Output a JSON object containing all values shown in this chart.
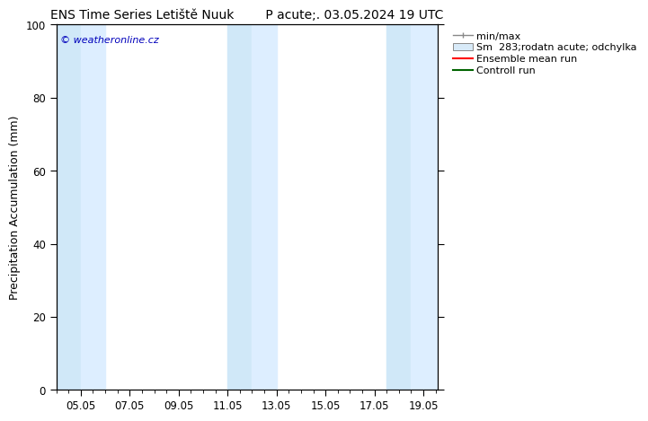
{
  "title": "ENS Time Series Letiště Nuuk        P acute;. 03.05.2024 19 UTC",
  "ylabel": "Precipitation Accumulation (mm)",
  "watermark": "© weatheronline.cz",
  "watermark_color": "#0000bb",
  "ylim": [
    0,
    100
  ],
  "xlim_start": 4.0,
  "xlim_end": 19.6,
  "xtick_labels": [
    "05.05",
    "07.05",
    "09.05",
    "11.05",
    "13.05",
    "15.05",
    "17.05",
    "19.05"
  ],
  "xtick_positions": [
    5,
    7,
    9,
    11,
    13,
    15,
    17,
    19
  ],
  "ytick_positions": [
    0,
    20,
    40,
    60,
    80,
    100
  ],
  "shaded_bands": [
    {
      "x_start": 4.0,
      "x_end": 5.0,
      "color": "#d0e8f8"
    },
    {
      "x_start": 5.0,
      "x_end": 6.0,
      "color": "#ddeeff"
    },
    {
      "x_start": 11.0,
      "x_end": 12.0,
      "color": "#d0e8f8"
    },
    {
      "x_start": 12.0,
      "x_end": 13.0,
      "color": "#ddeeff"
    },
    {
      "x_start": 17.5,
      "x_end": 18.5,
      "color": "#d0e8f8"
    },
    {
      "x_start": 18.5,
      "x_end": 19.6,
      "color": "#ddeeff"
    }
  ],
  "legend_labels": [
    "min/max",
    "Sm  283;rodatn acute; odchylka",
    "Ensemble mean run",
    "Controll run"
  ],
  "legend_line_red": "#ff0000",
  "legend_line_green": "#006400",
  "legend_gray_dark": "#888888",
  "legend_gray_light": "#cccccc",
  "bg_color": "#ffffff",
  "plot_bg_color": "#ffffff",
  "title_fontsize": 10,
  "axis_label_fontsize": 9,
  "tick_fontsize": 8.5,
  "legend_fontsize": 8
}
